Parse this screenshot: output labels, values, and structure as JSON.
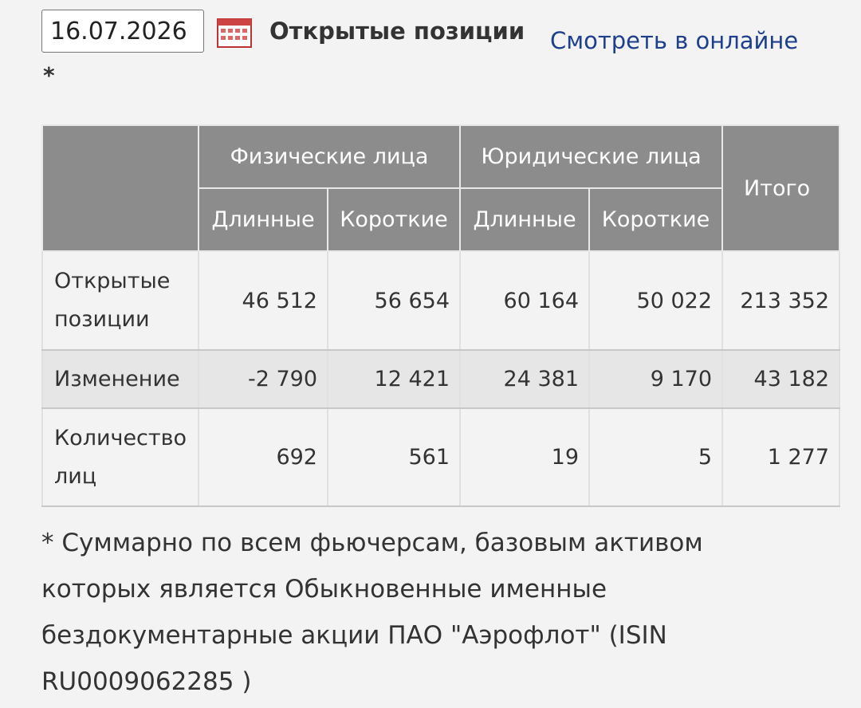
{
  "header": {
    "date": "16.07.2026",
    "title": "Открытые позиции",
    "link": "Смотреть в онлайне",
    "asterisk": "*"
  },
  "table": {
    "groups": [
      "Физические лица",
      "Юридические лица"
    ],
    "total": "Итого",
    "subheaders": [
      "Длинные",
      "Короткие",
      "Длинные",
      "Короткие"
    ],
    "rows": [
      [
        "Открытые позиции",
        "46 512",
        "56 654",
        "60 164",
        "50 022",
        "213 352"
      ],
      [
        "Изменение",
        "-2 790",
        "12 421",
        "24 381",
        "9 170",
        "43 182"
      ],
      [
        "Количество лиц",
        "692",
        "561",
        "19",
        "5",
        "1 277"
      ]
    ]
  },
  "footnote": "* Суммарно по всем фьючерсам, базовым активом которых является Обыкновенные именные бездокументарные акции ПАО \"Аэрофлот\" (ISIN RU0009062285 )"
}
